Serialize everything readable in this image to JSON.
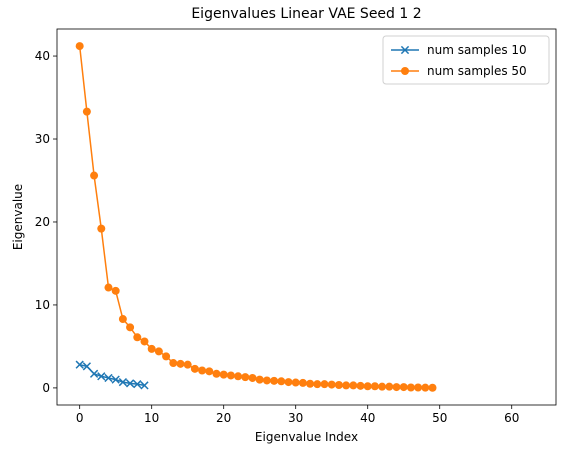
{
  "chart_data": {
    "type": "line",
    "title": "Eigenvalues Linear VAE Seed 1 2",
    "xlabel": "Eigenvalue Index",
    "ylabel": "Eigenvalue",
    "xlim": [
      -3.15,
      66.15
    ],
    "ylim": [
      -2.06,
      43.26
    ],
    "xticks": [
      0,
      10,
      20,
      30,
      40,
      50,
      60
    ],
    "yticks": [
      0,
      10,
      20,
      30,
      40
    ],
    "grid": false,
    "legend": "top-right",
    "series": [
      {
        "name": "num samples 10",
        "color": "#1f77b4",
        "marker": "x",
        "x": [
          0,
          1,
          2,
          3,
          4,
          5,
          6,
          7,
          8,
          9
        ],
        "values": [
          2.8,
          2.6,
          1.7,
          1.4,
          1.2,
          1.0,
          0.7,
          0.55,
          0.45,
          0.3
        ]
      },
      {
        "name": "num samples 50",
        "color": "#ff7f0e",
        "marker": "o",
        "x": [
          0,
          1,
          2,
          3,
          4,
          5,
          6,
          7,
          8,
          9,
          10,
          11,
          12,
          13,
          14,
          15,
          16,
          17,
          18,
          19,
          20,
          21,
          22,
          23,
          24,
          25,
          26,
          27,
          28,
          29,
          30,
          31,
          32,
          33,
          34,
          35,
          36,
          37,
          38,
          39,
          40,
          41,
          42,
          43,
          44,
          45,
          46,
          47,
          48,
          49
        ],
        "values": [
          41.2,
          33.3,
          25.6,
          19.2,
          12.1,
          11.7,
          8.3,
          7.3,
          6.1,
          5.6,
          4.7,
          4.4,
          3.8,
          3.0,
          2.9,
          2.8,
          2.3,
          2.1,
          2.0,
          1.7,
          1.6,
          1.5,
          1.4,
          1.3,
          1.2,
          1.0,
          0.9,
          0.85,
          0.8,
          0.7,
          0.65,
          0.6,
          0.5,
          0.45,
          0.45,
          0.4,
          0.35,
          0.3,
          0.3,
          0.25,
          0.2,
          0.2,
          0.15,
          0.15,
          0.1,
          0.1,
          0.05,
          0.05,
          0.03,
          0.02
        ]
      }
    ]
  }
}
